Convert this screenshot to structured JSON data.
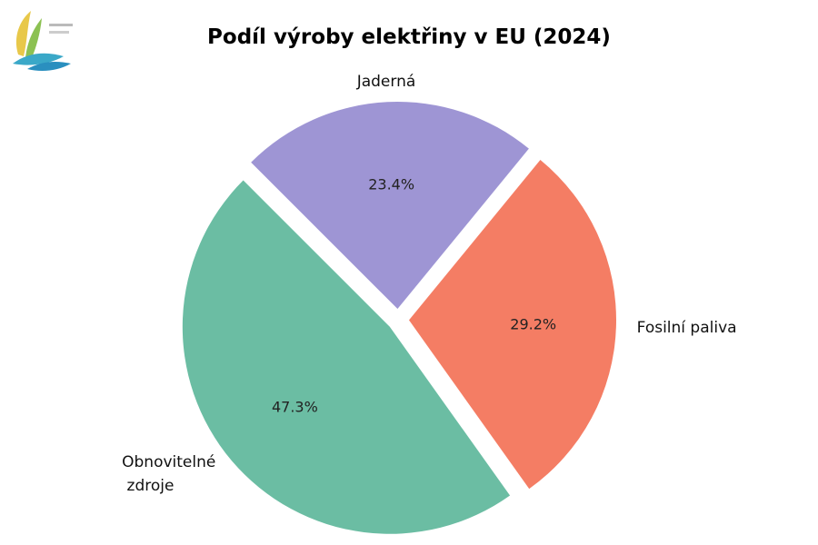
{
  "chart_data": {
    "type": "pie",
    "title": "Podíl výroby elektřiny v EU (2024)",
    "categories": [
      "Jaderná",
      "Fosilní paliva",
      "Obnovitelné\n zdroje"
    ],
    "values": [
      23.4,
      29.2,
      47.3
    ],
    "value_labels": [
      "23.4%",
      "29.2%",
      "47.3%"
    ],
    "colors": [
      "#9e95d4",
      "#f47d64",
      "#6bbda3"
    ]
  }
}
